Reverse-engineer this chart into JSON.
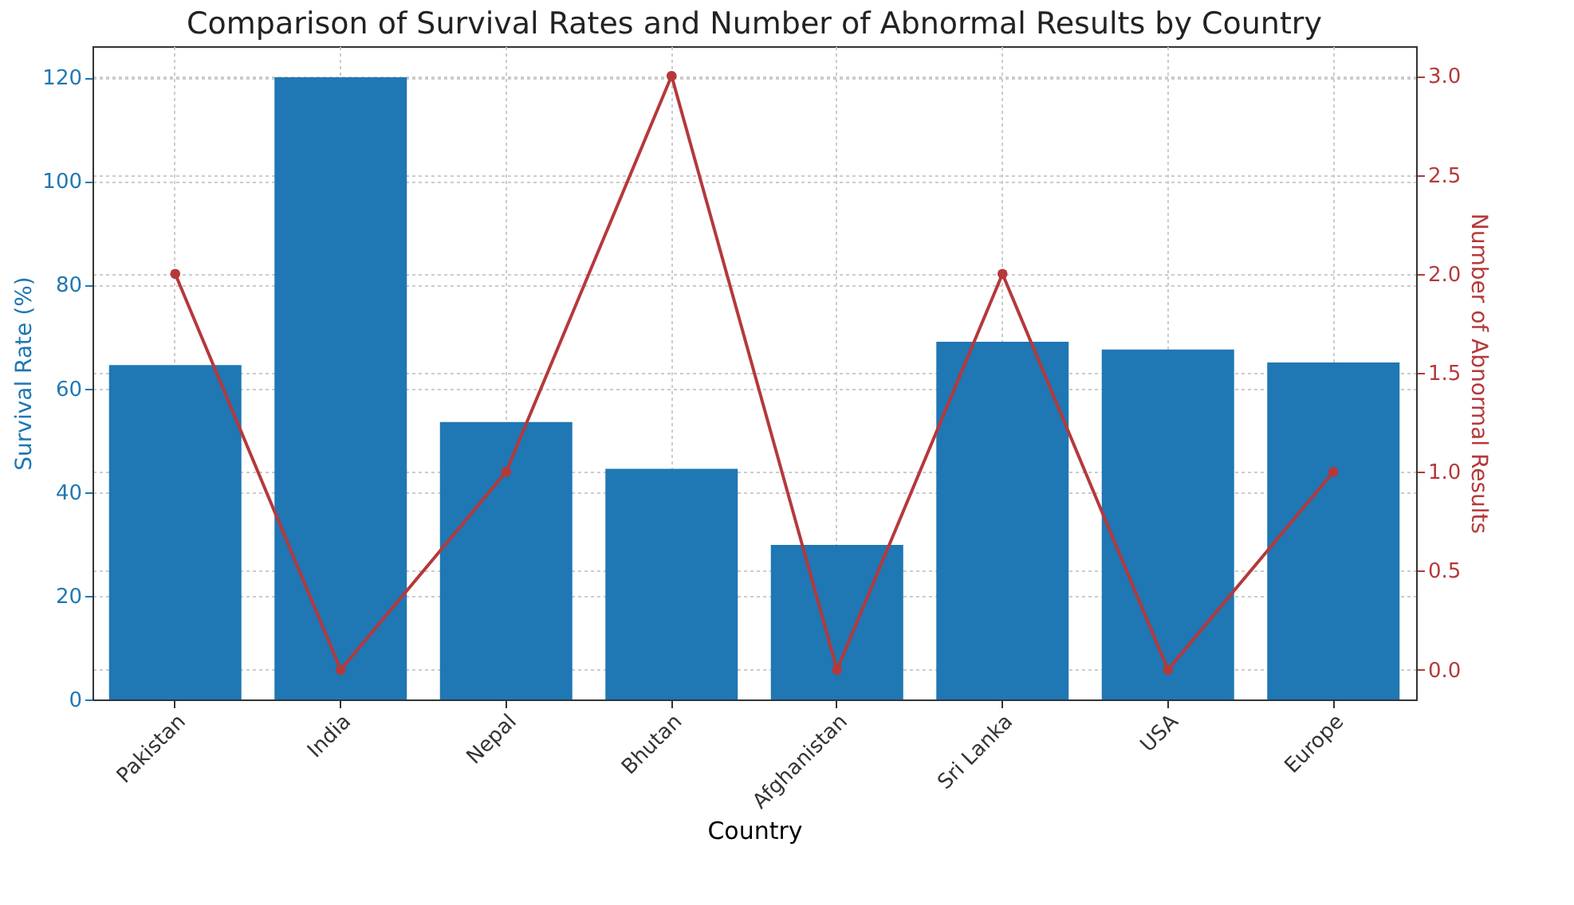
{
  "chart_data": {
    "type": "bar",
    "title": "Comparison of Survival Rates and Number of Abnormal Results by Country",
    "xlabel": "Country",
    "ylabel": "Survival Rate (%)",
    "y2label": "Number of Abnormal Results",
    "categories": [
      "Pakistan",
      "India",
      "Nepal",
      "Bhutan",
      "Afghanistan",
      "Sri Lanka",
      "USA",
      "Europe"
    ],
    "series": [
      {
        "color": "#1f77b4",
        "values": [
          64.5,
          120,
          53.5,
          44.5,
          29.8,
          69,
          67.5,
          65
        ]
      },
      {
        "type": "line",
        "axis": "y2",
        "color": "#b5393b",
        "values": [
          2,
          0,
          1,
          3,
          0,
          2,
          0,
          1
        ]
      }
    ],
    "ylim": [
      0,
      126
    ],
    "yticks": [
      0,
      20,
      40,
      60,
      80,
      100,
      120
    ],
    "y2lim": [
      -0.15,
      3.15
    ],
    "y2ticks": [
      {
        "value": 0,
        "label": "0.0"
      },
      {
        "value": 0.5,
        "label": "0.5"
      },
      {
        "value": 1,
        "label": "1.0"
      },
      {
        "value": 1.5,
        "label": "1.5"
      },
      {
        "value": 2,
        "label": "2.0"
      },
      {
        "value": 2.5,
        "label": "2.5"
      },
      {
        "value": 3,
        "label": "3.0"
      }
    ],
    "grid": true,
    "marker": "circle",
    "line_style": "solid"
  }
}
